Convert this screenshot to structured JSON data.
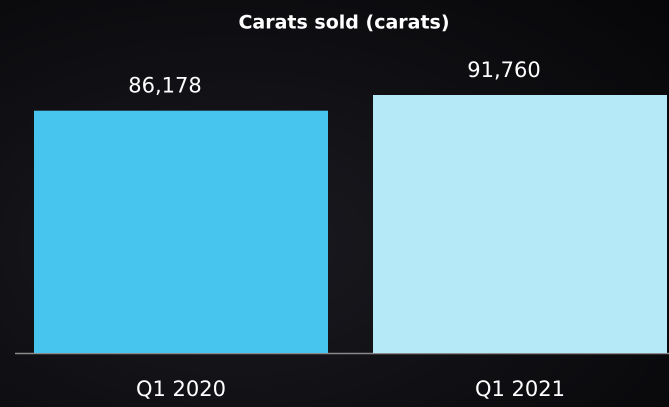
{
  "chart_data": {
    "type": "bar",
    "title": "Carats sold (carats)",
    "categories": [
      "Q1 2020",
      "Q1 2021"
    ],
    "values": [
      86178,
      91760
    ],
    "value_labels": [
      "86,178",
      "91,760"
    ],
    "colors": [
      "#47c5ee",
      "#b5e9f7"
    ]
  }
}
